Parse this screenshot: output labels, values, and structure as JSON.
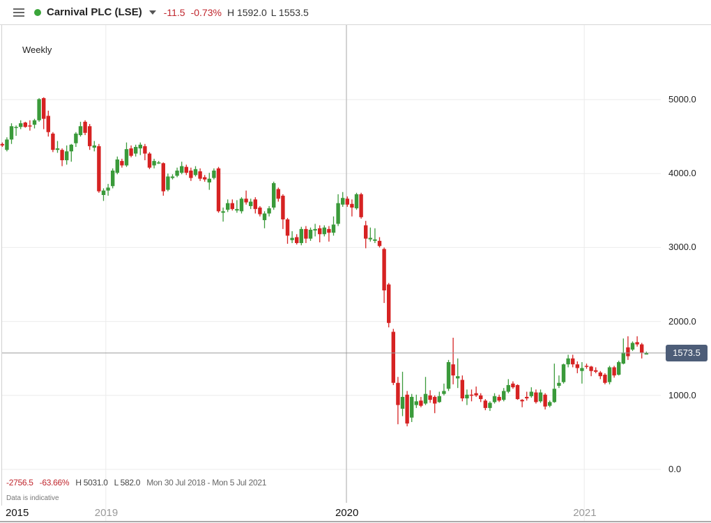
{
  "header": {
    "title": "Carnival PLC (LSE)",
    "status_color": "#3aa53a",
    "change": "-11.5",
    "change_pct": "-0.73%",
    "high": "H 1592.0",
    "low": "L 1553.5"
  },
  "period_label": "Weekly",
  "summary": {
    "change": "-2756.5",
    "change_pct": "-63.66%",
    "high": "H 5031.0",
    "low": "L 582.0",
    "range": "Mon 30 Jul 2018 - Mon 5 Jul 2021"
  },
  "disclaimer": "Data is indicative",
  "current_price_label": "1573.5",
  "chart_data": {
    "type": "candlestick",
    "interval": "weekly",
    "up_color": "#3a9a3a",
    "down_color": "#d62222",
    "grid": true,
    "ylim": [
      0,
      5000
    ],
    "y_ticks": [
      "5000.0",
      "4000.0",
      "3000.0",
      "2000.0",
      "1000.0",
      "0.0"
    ],
    "y_tick_values": [
      5000,
      4000,
      3000,
      2000,
      1000,
      0
    ],
    "current_price": 1573.5,
    "x_ticks": [
      {
        "label": "2015",
        "week_index": null
      },
      {
        "label": "2019",
        "week_index": 22.5
      },
      {
        "label": "2020",
        "week_index": 74.8
      },
      {
        "label": "2021",
        "week_index": 126.5
      }
    ],
    "crosshair_week_index": 74.8,
    "ohlc": [
      [
        4400,
        4420,
        4360,
        4380
      ],
      [
        4320,
        4490,
        4300,
        4460
      ],
      [
        4460,
        4680,
        4400,
        4640
      ],
      [
        4620,
        4650,
        4510,
        4630
      ],
      [
        4630,
        4720,
        4600,
        4680
      ],
      [
        4690,
        4700,
        4620,
        4630
      ],
      [
        4650,
        4720,
        4580,
        4640
      ],
      [
        4660,
        4740,
        4610,
        4720
      ],
      [
        4720,
        5020,
        4700,
        5006
      ],
      [
        5020,
        5031,
        4600,
        4740
      ],
      [
        4780,
        4850,
        4500,
        4560
      ],
      [
        4540,
        4560,
        4290,
        4320
      ],
      [
        4320,
        4440,
        4280,
        4340
      ],
      [
        4320,
        4340,
        4100,
        4180
      ],
      [
        4180,
        4380,
        4120,
        4300
      ],
      [
        4300,
        4400,
        4160,
        4390
      ],
      [
        4410,
        4560,
        4360,
        4540
      ],
      [
        4520,
        4700,
        4500,
        4640
      ],
      [
        4700,
        4720,
        4520,
        4550
      ],
      [
        4640,
        4670,
        4320,
        4370
      ],
      [
        4350,
        4440,
        4300,
        4380
      ],
      [
        4370,
        4400,
        3740,
        3760
      ],
      [
        3710,
        3800,
        3630,
        3770
      ],
      [
        3770,
        3860,
        3700,
        3810
      ],
      [
        3830,
        4070,
        3800,
        4040
      ],
      [
        4010,
        4230,
        3990,
        4190
      ],
      [
        4170,
        4200,
        4080,
        4110
      ],
      [
        4110,
        4420,
        4090,
        4330
      ],
      [
        4340,
        4380,
        4220,
        4240
      ],
      [
        4270,
        4390,
        4230,
        4360
      ],
      [
        4340,
        4420,
        4250,
        4390
      ],
      [
        4370,
        4400,
        4180,
        4270
      ],
      [
        4270,
        4290,
        4060,
        4080
      ],
      [
        4110,
        4200,
        4070,
        4170
      ],
      [
        4150,
        4170,
        4130,
        4150
      ],
      [
        4140,
        4150,
        3700,
        3760
      ],
      [
        3780,
        4000,
        3760,
        3960
      ],
      [
        3940,
        3990,
        3920,
        3960
      ],
      [
        3970,
        4080,
        3950,
        4040
      ],
      [
        4010,
        4160,
        3990,
        4100
      ],
      [
        4090,
        4120,
        3980,
        4010
      ],
      [
        4040,
        4080,
        3900,
        3940
      ],
      [
        3980,
        4100,
        3960,
        4060
      ],
      [
        4030,
        4070,
        3900,
        3930
      ],
      [
        3950,
        3980,
        3890,
        3920
      ],
      [
        3880,
        4010,
        3780,
        3930
      ],
      [
        3940,
        4070,
        3920,
        4040
      ],
      [
        4070,
        4090,
        3470,
        3490
      ],
      [
        3470,
        3540,
        3350,
        3490
      ],
      [
        3510,
        3650,
        3480,
        3600
      ],
      [
        3600,
        3650,
        3500,
        3520
      ],
      [
        3500,
        3640,
        3470,
        3520
      ],
      [
        3490,
        3680,
        3460,
        3660
      ],
      [
        3660,
        3770,
        3580,
        3610
      ],
      [
        3560,
        3660,
        3520,
        3620
      ],
      [
        3650,
        3680,
        3460,
        3520
      ],
      [
        3540,
        3560,
        3420,
        3450
      ],
      [
        3370,
        3490,
        3260,
        3460
      ],
      [
        3460,
        3560,
        3420,
        3530
      ],
      [
        3540,
        3890,
        3510,
        3870
      ],
      [
        3790,
        3810,
        3620,
        3660
      ],
      [
        3700,
        3720,
        3250,
        3380
      ],
      [
        3380,
        3400,
        3050,
        3160
      ],
      [
        3100,
        3220,
        3060,
        3130
      ],
      [
        3140,
        3180,
        3040,
        3060
      ],
      [
        3060,
        3280,
        3030,
        3250
      ],
      [
        3250,
        3290,
        3060,
        3120
      ],
      [
        3120,
        3270,
        3090,
        3240
      ],
      [
        3230,
        3320,
        3150,
        3250
      ],
      [
        3260,
        3300,
        3070,
        3180
      ],
      [
        3180,
        3300,
        3150,
        3270
      ],
      [
        3250,
        3290,
        3080,
        3200
      ],
      [
        3200,
        3420,
        3160,
        3310
      ],
      [
        3320,
        3720,
        3290,
        3600
      ],
      [
        3580,
        3750,
        3550,
        3670
      ],
      [
        3660,
        3690,
        3550,
        3580
      ],
      [
        3590,
        3650,
        3420,
        3540
      ],
      [
        3530,
        3740,
        3510,
        3720
      ],
      [
        3720,
        3740,
        3390,
        3410
      ],
      [
        3300,
        3360,
        2990,
        3120
      ],
      [
        3110,
        3270,
        3080,
        3130
      ],
      [
        3090,
        3260,
        3060,
        3110
      ],
      [
        3090,
        3140,
        3000,
        3020
      ],
      [
        2980,
        3000,
        2250,
        2420
      ],
      [
        2500,
        2520,
        1920,
        1980
      ],
      [
        1860,
        1900,
        1140,
        1170
      ],
      [
        1170,
        1250,
        610,
        870
      ],
      [
        820,
        1320,
        720,
        980
      ],
      [
        1010,
        1060,
        582,
        620
      ],
      [
        700,
        1020,
        640,
        980
      ],
      [
        870,
        1010,
        830,
        920
      ],
      [
        930,
        980,
        840,
        860
      ],
      [
        890,
        1250,
        870,
        1020
      ],
      [
        1000,
        1070,
        900,
        940
      ],
      [
        980,
        1000,
        760,
        890
      ],
      [
        910,
        1050,
        900,
        990
      ],
      [
        1020,
        1160,
        1000,
        1060
      ],
      [
        1090,
        1480,
        1060,
        1450
      ],
      [
        1420,
        1780,
        1150,
        1270
      ],
      [
        1230,
        1500,
        1100,
        1260
      ],
      [
        1210,
        1270,
        920,
        960
      ],
      [
        960,
        1080,
        870,
        1010
      ],
      [
        1010,
        1080,
        920,
        1000
      ],
      [
        1030,
        1120,
        980,
        1000
      ],
      [
        1000,
        1030,
        910,
        950
      ],
      [
        930,
        950,
        800,
        830
      ],
      [
        830,
        920,
        790,
        900
      ],
      [
        910,
        1030,
        890,
        990
      ],
      [
        980,
        1010,
        910,
        930
      ],
      [
        940,
        1100,
        920,
        1060
      ],
      [
        1050,
        1220,
        1030,
        1140
      ],
      [
        1160,
        1190,
        1090,
        1110
      ],
      [
        1140,
        1150,
        940,
        950
      ],
      [
        940,
        950,
        840,
        920
      ],
      [
        980,
        1050,
        930,
        960
      ],
      [
        990,
        1110,
        970,
        1050
      ],
      [
        1040,
        1080,
        890,
        910
      ],
      [
        920,
        1080,
        900,
        1040
      ],
      [
        1010,
        1030,
        810,
        850
      ],
      [
        860,
        930,
        840,
        910
      ],
      [
        910,
        1430,
        900,
        1090
      ],
      [
        1130,
        1270,
        1100,
        1170
      ],
      [
        1180,
        1430,
        1160,
        1420
      ],
      [
        1420,
        1550,
        1380,
        1500
      ],
      [
        1500,
        1550,
        1380,
        1420
      ],
      [
        1420,
        1460,
        1300,
        1370
      ],
      [
        1330,
        1450,
        1160,
        1370
      ],
      [
        1400,
        1430,
        1360,
        1390
      ],
      [
        1390,
        1400,
        1260,
        1330
      ],
      [
        1340,
        1380,
        1300,
        1320
      ],
      [
        1310,
        1330,
        1220,
        1260
      ],
      [
        1280,
        1300,
        1150,
        1170
      ],
      [
        1180,
        1400,
        1150,
        1380
      ],
      [
        1380,
        1400,
        1240,
        1270
      ],
      [
        1280,
        1470,
        1270,
        1450
      ],
      [
        1430,
        1770,
        1420,
        1580
      ],
      [
        1650,
        1800,
        1480,
        1530
      ],
      [
        1620,
        1730,
        1600,
        1710
      ],
      [
        1720,
        1800,
        1660,
        1690
      ],
      [
        1690,
        1710,
        1500,
        1580
      ],
      [
        1553.5,
        1592,
        1553.5,
        1573.5
      ]
    ]
  }
}
